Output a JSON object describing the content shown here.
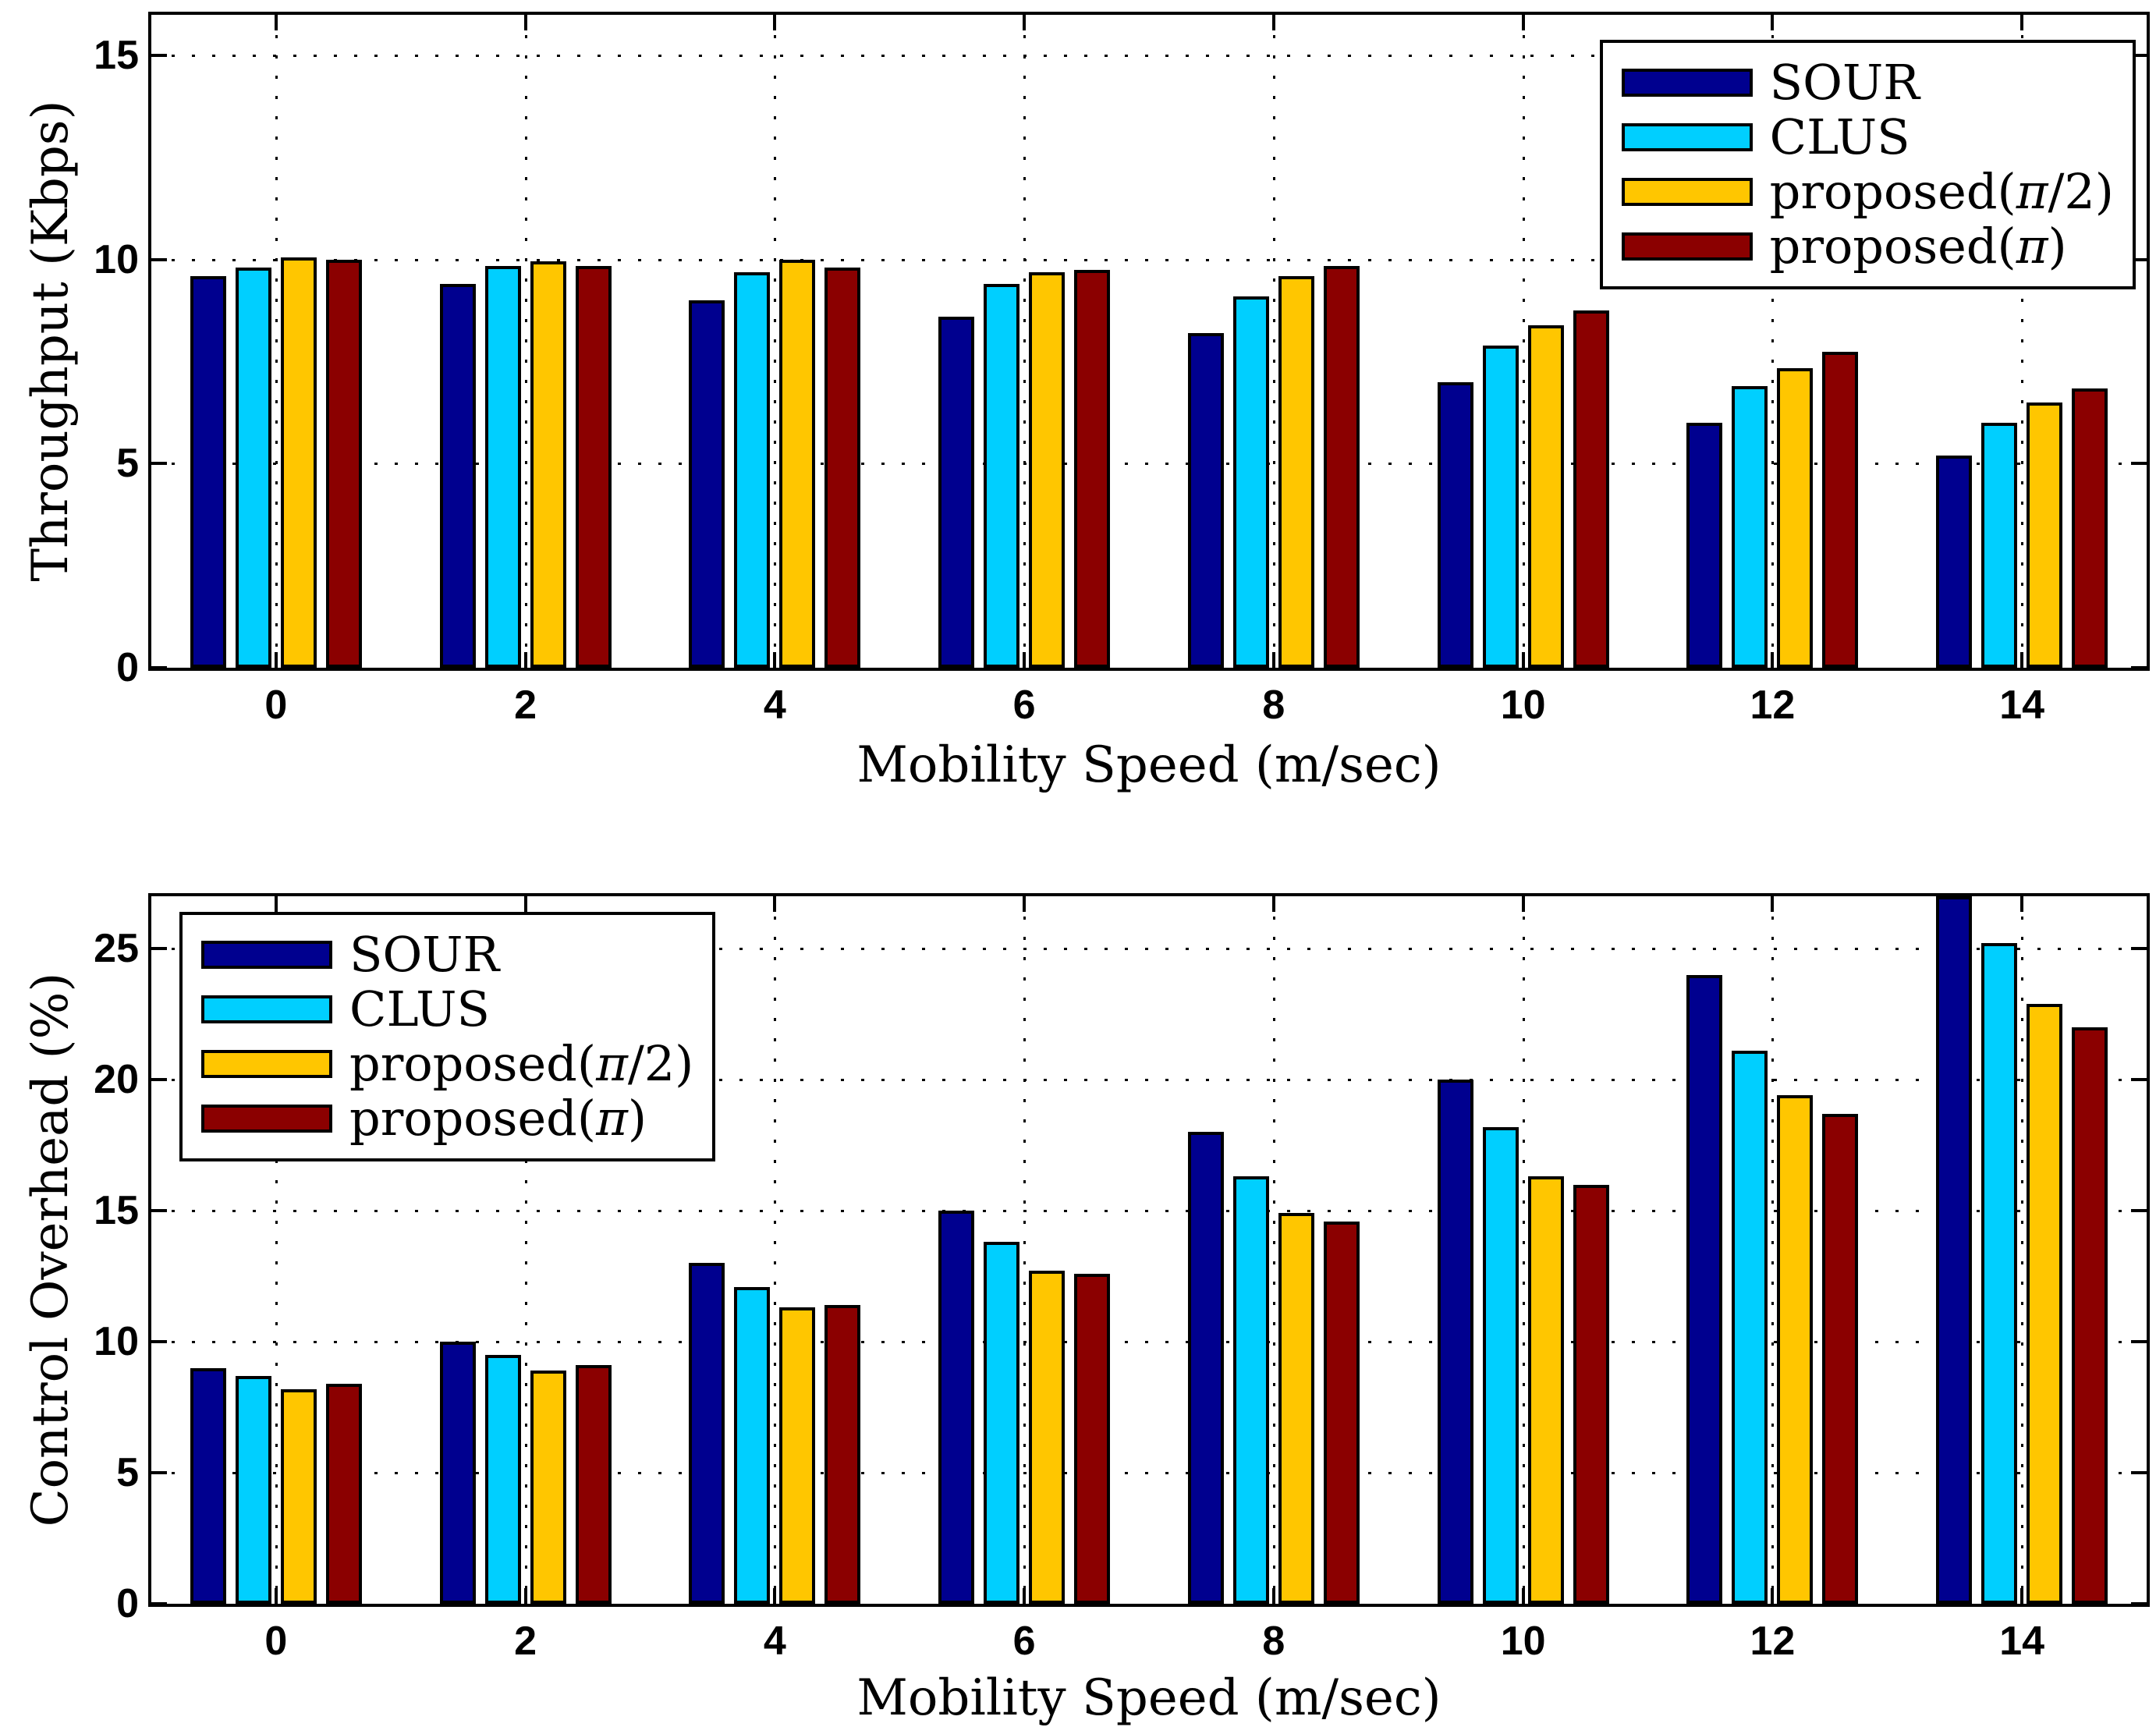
{
  "figure_title": "",
  "chart_data": [
    {
      "id": "throughput",
      "type": "bar",
      "title": "",
      "xlabel": "Mobility Speed (m/sec)",
      "ylabel": "Throughput (Kbps)",
      "categories": [
        0,
        2,
        4,
        6,
        8,
        10,
        12,
        14
      ],
      "xtick_labels": [
        "0",
        "2",
        "4",
        "6",
        "8",
        "10",
        "12",
        "14"
      ],
      "series": [
        {
          "name": "SOUR",
          "color": "#00008F",
          "values": [
            9.6,
            9.4,
            9.0,
            8.6,
            8.2,
            7.0,
            6.0,
            5.2
          ]
        },
        {
          "name": "CLUS",
          "color": "#00CFFF",
          "values": [
            9.8,
            9.85,
            9.7,
            9.4,
            9.1,
            7.9,
            6.9,
            6.0
          ]
        },
        {
          "name": "proposed(π/2)",
          "color": "#FFC600",
          "values": [
            10.05,
            9.95,
            10.0,
            9.7,
            9.6,
            8.4,
            7.35,
            6.5
          ]
        },
        {
          "name": "proposed(π)",
          "color": "#8B0000",
          "values": [
            10.0,
            9.85,
            9.8,
            9.75,
            9.85,
            8.75,
            7.75,
            6.85
          ]
        }
      ],
      "xlim": [
        -1,
        15
      ],
      "ylim": [
        0,
        16
      ],
      "yticks": [
        0,
        5,
        10,
        15
      ],
      "grid": true,
      "grid_style": "dotted",
      "legend_position": "top-right"
    },
    {
      "id": "control-overhead",
      "type": "bar",
      "title": "",
      "xlabel": "Mobility Speed (m/sec)",
      "ylabel": "Control Overhead (%)",
      "categories": [
        0,
        2,
        4,
        6,
        8,
        10,
        12,
        14
      ],
      "xtick_labels": [
        "0",
        "2",
        "4",
        "6",
        "8",
        "10",
        "12",
        "14"
      ],
      "series": [
        {
          "name": "SOUR",
          "color": "#00008F",
          "values": [
            9.0,
            10.0,
            13.0,
            15.0,
            18.0,
            20.0,
            24.0,
            27.0
          ]
        },
        {
          "name": "CLUS",
          "color": "#00CFFF",
          "values": [
            8.7,
            9.5,
            12.1,
            13.8,
            16.3,
            18.2,
            21.1,
            25.2
          ]
        },
        {
          "name": "proposed(π/2)",
          "color": "#FFC600",
          "values": [
            8.2,
            8.9,
            11.3,
            12.7,
            14.9,
            16.3,
            19.4,
            22.9
          ]
        },
        {
          "name": "proposed(π)",
          "color": "#8B0000",
          "values": [
            8.4,
            9.1,
            11.4,
            12.6,
            14.6,
            16.0,
            18.7,
            22.0
          ]
        }
      ],
      "xlim": [
        -1,
        15
      ],
      "ylim": [
        0,
        27
      ],
      "yticks": [
        0,
        5,
        10,
        15,
        20,
        25
      ],
      "grid": true,
      "grid_style": "dotted",
      "legend_position": "top-left"
    }
  ],
  "styles": {
    "bar_edge_color": "#000000",
    "axes_color": "#000000",
    "background": "#FFFFFF"
  }
}
